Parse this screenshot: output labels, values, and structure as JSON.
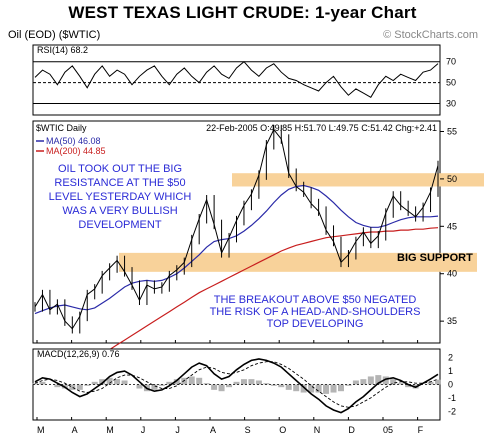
{
  "title": "WEST TEXAS LIGHT CRUDE: 1-year Chart",
  "header": {
    "symbol": "Oil (EOD) ($WTIC)",
    "copyright": "© StockCharts.com"
  },
  "rsi": {
    "label": "RSI(14) 68.2",
    "ticks": [
      "70",
      "50",
      "30"
    ]
  },
  "price_panel": {
    "symbol_label": "$WTIC Daily",
    "ohlc": "22-Feb-2005  O:49.85  H:51.70  L:49.75  C:51.42  Chg:+2.41",
    "legend": [
      {
        "label": "MA(50) 46.08",
        "color": "#2a2aa8"
      },
      {
        "label": "MA(200) 44.85",
        "color": "#c81e1e"
      }
    ],
    "annotations": {
      "top_left": [
        "OIL TOOK OUT THE BIG",
        "RESISTANCE AT THE $50",
        "LEVEL YESTERDAY WHICH",
        "WAS A VERY BULLISH",
        "DEVELOPMENT"
      ],
      "big_support": "BIG SUPPORT",
      "bottom": [
        "THE BREAKOUT ABOVE $50 NEGATED",
        "THE RISK OF A HEAD-AND-SHOULDERS",
        "TOP DEVELOPING"
      ]
    },
    "colors": {
      "price": "#000000",
      "annotation_text": "#2b2bd6",
      "band": "#f8d29a"
    }
  },
  "macd": {
    "label": "MACD(12,26,9) 0.76",
    "ticks": [
      "2",
      "1",
      "0",
      "-1",
      "-2"
    ]
  },
  "x_axis": [
    "M",
    "A",
    "M",
    "J",
    "J",
    "A",
    "S",
    "O",
    "N",
    "D",
    "05",
    "F"
  ],
  "chart_data": [
    {
      "type": "line",
      "name": "RSI(14)",
      "x_start": "2004-02",
      "y": [
        55,
        62,
        58,
        48,
        60,
        66,
        56,
        45,
        58,
        66,
        56,
        62,
        58,
        48,
        56,
        62,
        66,
        56,
        48,
        58,
        64,
        56,
        50,
        60,
        66,
        58,
        54,
        64,
        70,
        62,
        56,
        64,
        68,
        60,
        54,
        52,
        48,
        45,
        42,
        50,
        56,
        46,
        38,
        44,
        40,
        36,
        48,
        56,
        52,
        58,
        55,
        52,
        60,
        62,
        68.2
      ],
      "ylim": [
        20,
        85
      ],
      "ref_lines": [
        70,
        50,
        30
      ]
    },
    {
      "type": "line",
      "name": "$WTIC Daily",
      "x_labels": [
        "M",
        "A",
        "M",
        "J",
        "J",
        "A",
        "S",
        "O",
        "N",
        "D",
        "05",
        "F"
      ],
      "series": [
        {
          "name": "Price",
          "values": [
            36.5,
            37.8,
            36.2,
            36.8,
            35.0,
            34.2,
            35.5,
            37.8,
            38.4,
            39.8,
            40.6,
            41.4,
            40.2,
            38.8,
            37.2,
            38.8,
            38.4,
            38.6,
            39.8,
            40.4,
            41.2,
            43.6,
            45.8,
            47.8,
            45.2,
            42.2,
            43.8,
            45.6,
            47.2,
            48.4,
            50.4,
            53.6,
            55.2,
            54.2,
            50.6,
            49.2,
            48.6,
            47.4,
            46.6,
            44.6,
            43.4,
            41.2,
            42.0,
            43.4,
            44.4,
            43.2,
            44.0,
            46.4,
            48.2,
            47.2,
            46.6,
            46.0,
            47.0,
            48.6,
            51.42
          ]
        },
        {
          "name": "MA(50)",
          "values": [
            35.8,
            36.1,
            36.4,
            36.6,
            36.7,
            36.5,
            36.3,
            36.2,
            36.4,
            36.9,
            37.4,
            38.0,
            38.6,
            39.0,
            39.2,
            39.3,
            39.2,
            39.3,
            39.6,
            40.0,
            40.6,
            41.3,
            42.0,
            42.8,
            43.4,
            43.6,
            43.7,
            44.0,
            44.5,
            45.1,
            45.8,
            46.6,
            47.5,
            48.3,
            48.9,
            49.2,
            49.3,
            49.1,
            48.8,
            48.2,
            47.5,
            46.7,
            46.0,
            45.4,
            45.1,
            44.9,
            44.9,
            45.1,
            45.4,
            45.7,
            45.9,
            46.0,
            46.0,
            46.0,
            46.08
          ]
        },
        {
          "name": "MA(200)",
          "values": [
            null,
            null,
            null,
            null,
            null,
            null,
            null,
            null,
            null,
            null,
            32.0,
            32.5,
            33.0,
            33.5,
            34.0,
            34.5,
            35.0,
            35.5,
            36.0,
            36.5,
            37.0,
            37.5,
            38.0,
            38.4,
            38.8,
            39.2,
            39.6,
            40.0,
            40.4,
            40.8,
            41.2,
            41.6,
            42.0,
            42.4,
            42.7,
            43.0,
            43.2,
            43.4,
            43.6,
            43.8,
            43.9,
            44.0,
            44.1,
            44.2,
            44.3,
            44.4,
            44.4,
            44.5,
            44.5,
            44.6,
            44.6,
            44.7,
            44.7,
            44.8,
            44.85
          ]
        }
      ],
      "ylim": [
        32.8,
        56
      ],
      "yticks": [
        35,
        40,
        45,
        50,
        55
      ],
      "bands": [
        {
          "label": "resistance",
          "y": [
            49.2,
            50.6
          ]
        },
        {
          "label": "BIG SUPPORT",
          "y": [
            40.2,
            42.2
          ]
        }
      ]
    },
    {
      "type": "line",
      "name": "MACD(12,26,9)",
      "series": [
        {
          "name": "MACD",
          "values": [
            0.2,
            0.5,
            0.4,
            0.1,
            -0.2,
            -0.6,
            -0.9,
            -0.7,
            -0.3,
            0.1,
            0.6,
            0.9,
            1.0,
            0.7,
            0.2,
            -0.3,
            -0.5,
            -0.4,
            -0.1,
            0.3,
            0.8,
            1.3,
            1.6,
            1.4,
            0.8,
            0.4,
            0.6,
            1.1,
            1.5,
            1.8,
            1.9,
            1.8,
            1.6,
            1.3,
            0.8,
            0.3,
            -0.2,
            -0.7,
            -1.1,
            -1.6,
            -1.9,
            -2.1,
            -1.8,
            -1.3,
            -0.9,
            -0.4,
            0.1,
            0.4,
            0.5,
            0.3,
            0.0,
            -0.2,
            0.1,
            0.4,
            0.76
          ]
        },
        {
          "name": "Signal",
          "values": [
            0.1,
            0.3,
            0.4,
            0.3,
            0.1,
            -0.2,
            -0.5,
            -0.6,
            -0.5,
            -0.3,
            0.1,
            0.5,
            0.7,
            0.7,
            0.5,
            0.2,
            -0.1,
            -0.3,
            -0.3,
            -0.1,
            0.3,
            0.7,
            1.1,
            1.3,
            1.2,
            0.9,
            0.8,
            0.9,
            1.1,
            1.4,
            1.6,
            1.7,
            1.7,
            1.5,
            1.2,
            0.8,
            0.4,
            -0.1,
            -0.5,
            -0.9,
            -1.3,
            -1.6,
            -1.7,
            -1.6,
            -1.3,
            -1.0,
            -0.6,
            -0.2,
            0.1,
            0.2,
            0.2,
            0.1,
            0.1,
            0.2,
            0.4
          ]
        }
      ],
      "ylim": [
        -2.5,
        2.5
      ],
      "yticks": [
        2,
        1,
        0,
        -1,
        -2
      ]
    }
  ]
}
